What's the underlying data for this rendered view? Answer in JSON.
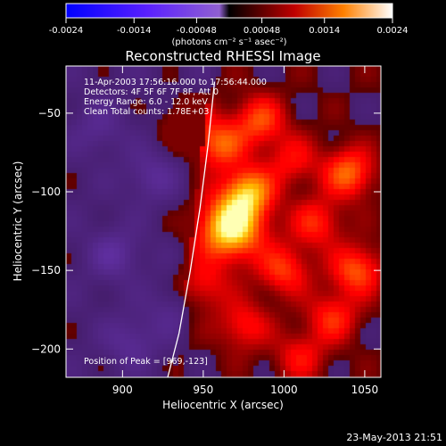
{
  "chart_data": {
    "type": "heatmap",
    "title": "Reconstructed RHESSI Image",
    "xlabel": "Heliocentric X (arcsec)",
    "ylabel": "Heliocentric Y (arcsec)",
    "xlim": [
      865,
      1060
    ],
    "ylim": [
      -218,
      -20
    ],
    "x_ticks": [
      900,
      950,
      1000,
      1050
    ],
    "y_ticks": [
      -50,
      -100,
      -150,
      -200
    ],
    "colorbar": {
      "range": [
        -0.0024,
        0.0024
      ],
      "tick_values": [
        -0.0024,
        -0.0014,
        -0.00048,
        0.00048,
        0.0014,
        0.0024
      ],
      "tick_labels": [
        "-0.0024",
        "-0.0014",
        "-0.00048",
        "0.00048",
        "0.0014",
        "0.0024"
      ],
      "label": "(photons cm⁻² s⁻¹ asec⁻²)"
    },
    "grid": false,
    "peak": {
      "x": 969,
      "y": -123
    },
    "limb_x": [
      928,
      935,
      942,
      948,
      953,
      957
    ],
    "limb_y": [
      -218,
      -190,
      -150,
      -110,
      -70,
      -30
    ],
    "intensity_blobs": [
      {
        "x": 967,
        "y": -123,
        "v": 0.0024
      },
      {
        "x": 978,
        "y": -100,
        "v": 0.0017
      },
      {
        "x": 960,
        "y": -70,
        "v": 0.0013
      },
      {
        "x": 985,
        "y": -55,
        "v": 0.0012
      },
      {
        "x": 1040,
        "y": -88,
        "v": 0.0014
      },
      {
        "x": 1045,
        "y": -150,
        "v": 0.0013
      },
      {
        "x": 1020,
        "y": -120,
        "v": 0.001
      },
      {
        "x": 1000,
        "y": -150,
        "v": 0.0011
      },
      {
        "x": 1030,
        "y": -180,
        "v": 0.001
      },
      {
        "x": 1010,
        "y": -205,
        "v": 0.0008
      },
      {
        "x": 950,
        "y": -160,
        "v": 0.0008
      },
      {
        "x": 975,
        "y": -185,
        "v": 0.0009
      },
      {
        "x": 940,
        "y": -55,
        "v": 0.0007
      },
      {
        "x": 1005,
        "y": -80,
        "v": 0.0008
      },
      {
        "x": 918,
        "y": -90,
        "v": -0.0006
      },
      {
        "x": 895,
        "y": -140,
        "v": -0.0007
      },
      {
        "x": 905,
        "y": -195,
        "v": -0.0006
      },
      {
        "x": 885,
        "y": -60,
        "v": -0.0005
      },
      {
        "x": 930,
        "y": -175,
        "v": -0.0004
      }
    ]
  },
  "annotations": {
    "time": "11-Apr-2003 17:56:16.000 to 17:56:44.000",
    "detectors": "Detectors: 4F 5F 6F 7F 8F, Att 0",
    "energy": "Energy Range: 6.0 - 12.0 keV",
    "clean": "Clean     Total counts: 1.78E+03",
    "peak": "Position of Peak = [969,-123]"
  },
  "footer_timestamp": "23-May-2013 21:51"
}
